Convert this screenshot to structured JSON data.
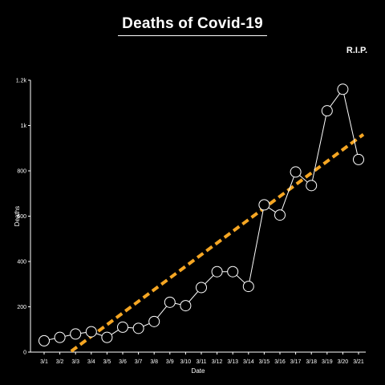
{
  "header": {
    "title": "Deaths of Covid-19",
    "subtitle": "R.I.P."
  },
  "chart_data": {
    "type": "line",
    "title": "Deaths of Covid-19",
    "subtitle": "R.I.P.",
    "xlabel": "Date",
    "ylabel": "Deaths",
    "categories": [
      "3/1",
      "3/2",
      "3/3",
      "3/4",
      "3/5",
      "3/6",
      "3/7",
      "3/8",
      "3/9",
      "3/10",
      "3/11",
      "3/12",
      "3/13",
      "3/14",
      "3/15",
      "3/16",
      "3/17",
      "3/18",
      "3/19",
      "3/20",
      "3/21"
    ],
    "series": [
      {
        "values": [
          50,
          65,
          80,
          90,
          65,
          110,
          105,
          135,
          220,
          205,
          285,
          355,
          355,
          290,
          650,
          605,
          795,
          735,
          1065,
          1160,
          850
        ]
      }
    ],
    "trendline": {
      "start": -85,
      "end": 945
    },
    "ylim": [
      0,
      1200
    ],
    "yticks": [
      0,
      200,
      400,
      600,
      800,
      1000,
      1200
    ],
    "ytick_labels": [
      "0",
      "200",
      "400",
      "600",
      "800",
      "1k",
      "1.2k"
    ],
    "grid": false,
    "colors": {
      "background": "#000000",
      "line": "#ffffff",
      "marker_fill": "#000000",
      "marker_stroke": "#ffffff",
      "trendline": "#f5a623"
    }
  }
}
